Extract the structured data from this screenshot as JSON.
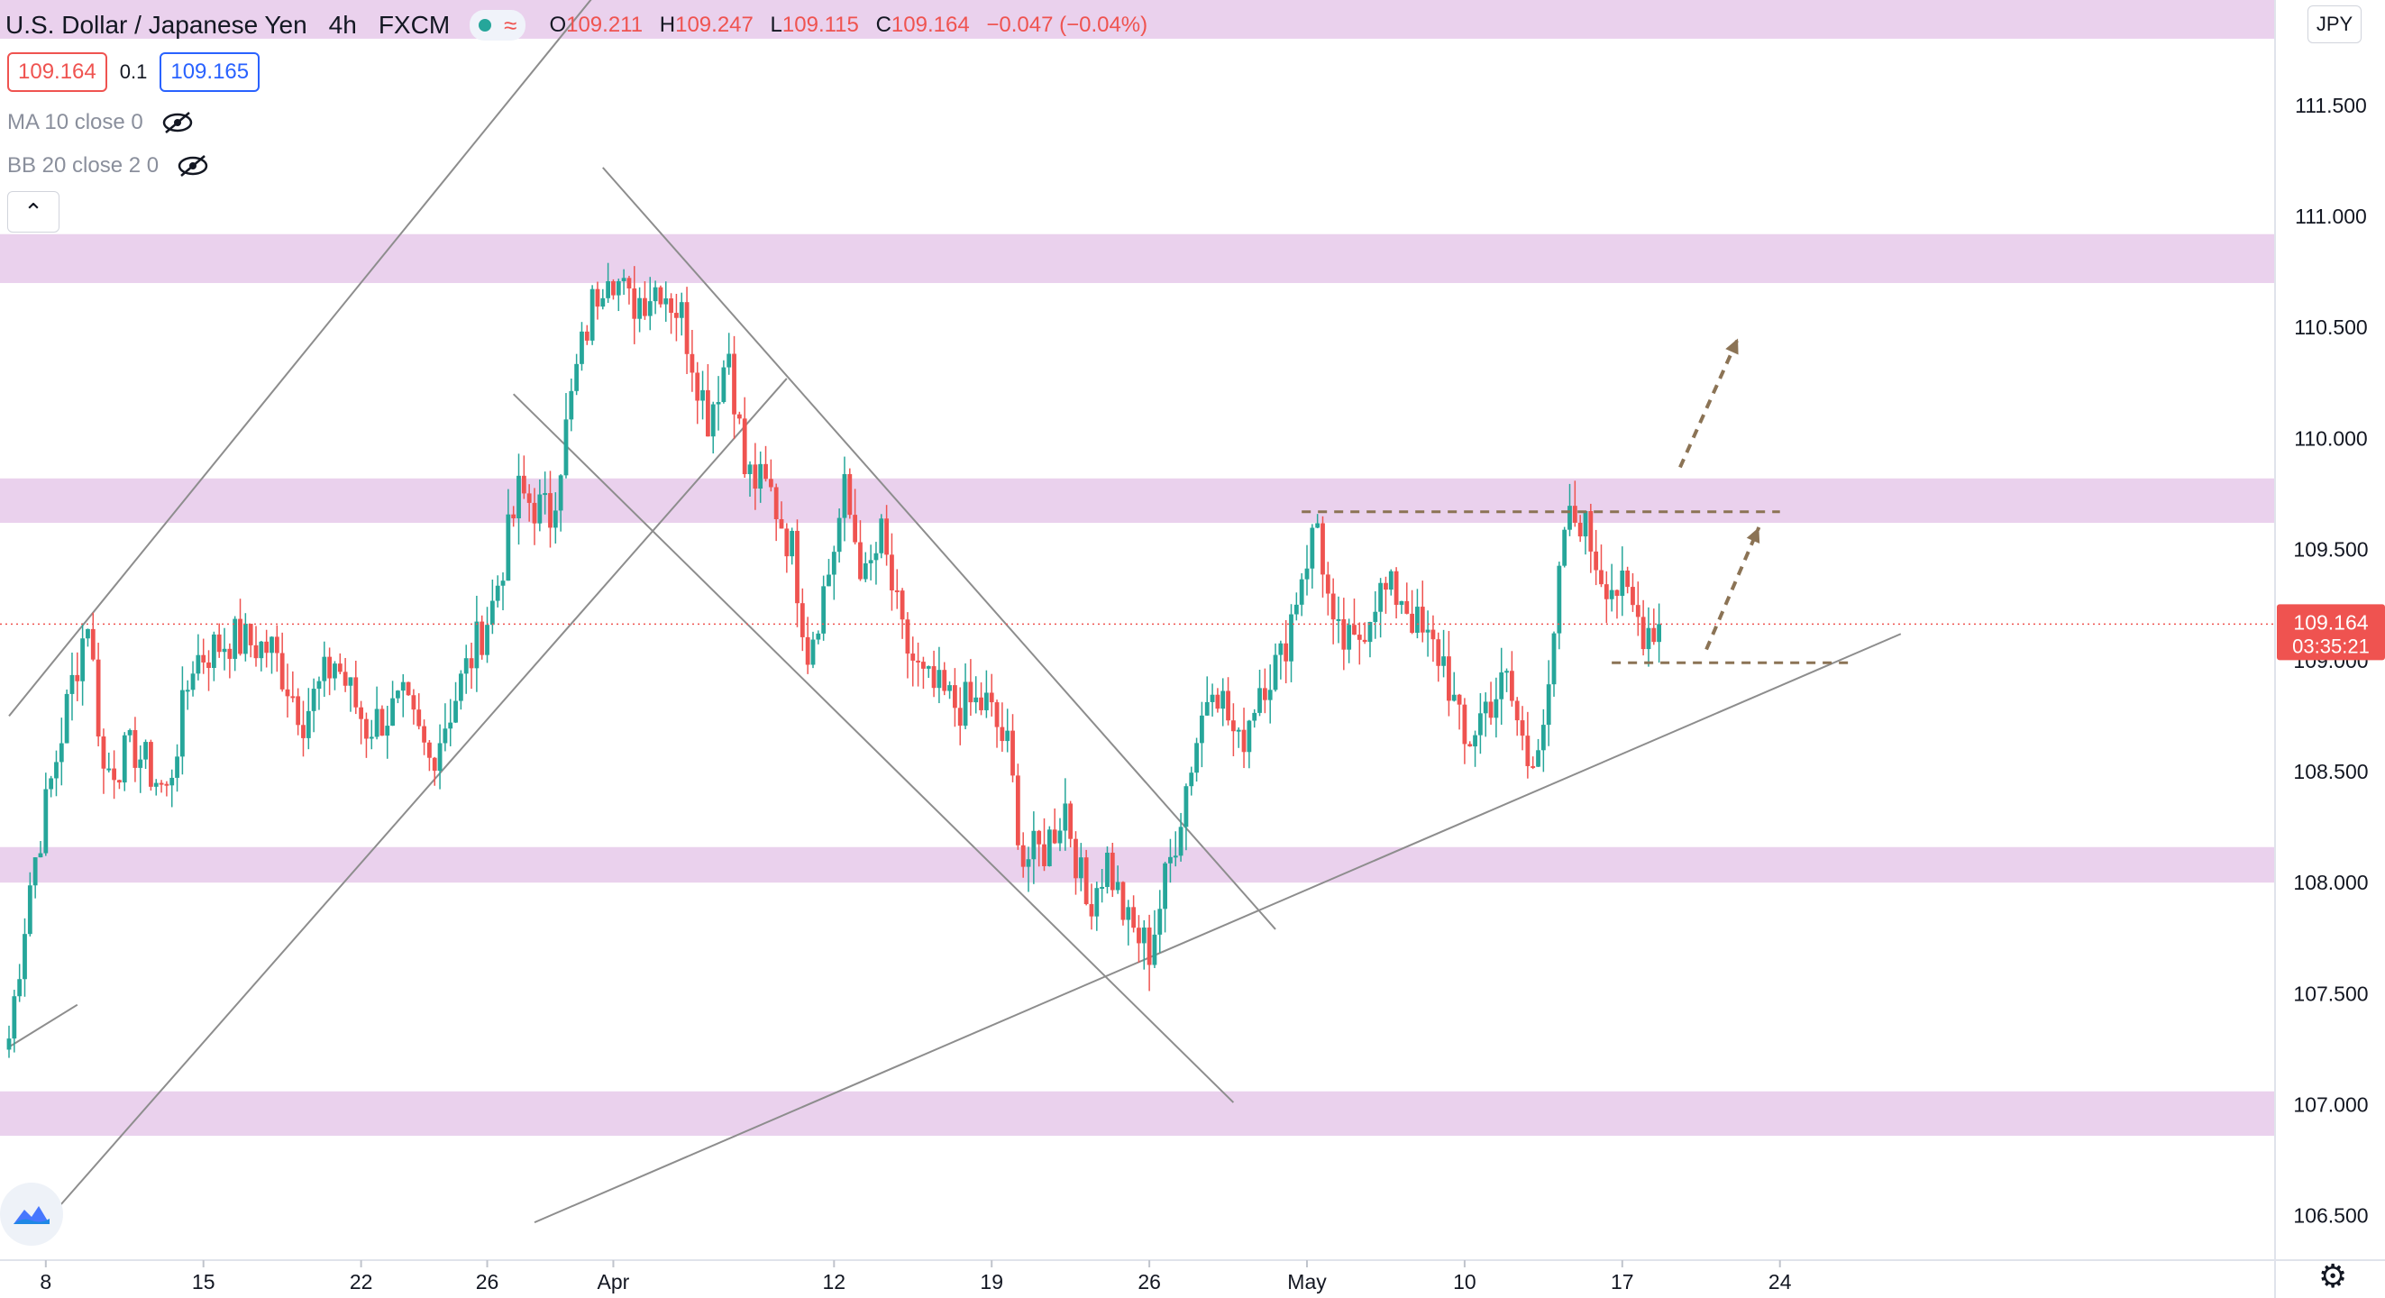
{
  "header": {
    "title": "U.S. Dollar / Japanese Yen",
    "interval": "4h",
    "exchange": "FXCM",
    "ohlc": [
      {
        "k": "O",
        "v": "109.211"
      },
      {
        "k": "H",
        "v": "109.247"
      },
      {
        "k": "L",
        "v": "109.115"
      },
      {
        "k": "C",
        "v": "109.164"
      }
    ],
    "change": "−0.047 (−0.04%)",
    "sell_price": "109.164",
    "spread": "0.1",
    "buy_price": "109.165"
  },
  "indicators": [
    {
      "label": "MA 10 close 0"
    },
    {
      "label": "BB 20 close 2 0"
    }
  ],
  "currency_badge": "JPY",
  "last_price_label": "109.164",
  "countdown_label": "03:35:21",
  "colors": {
    "up": "#26a69a",
    "down": "#ef5350",
    "zone": "#e6c9ea",
    "trend": "#8d8d8d",
    "dashed": "#8b7355"
  },
  "chart_data": {
    "type": "candlestick",
    "y_axis": {
      "min": 106.3,
      "max": 111.95,
      "ticks": [
        "111.500",
        "111.000",
        "110.500",
        "110.000",
        "109.500",
        "109.000",
        "108.500",
        "108.000",
        "107.500",
        "107.000",
        "106.500"
      ],
      "position": "right"
    },
    "x_axis": {
      "ticks": [
        {
          "label": "8",
          "bar": 7
        },
        {
          "label": "15",
          "bar": 37
        },
        {
          "label": "22",
          "bar": 67
        },
        {
          "label": "26",
          "bar": 91
        },
        {
          "label": "Apr",
          "bar": 115
        },
        {
          "label": "12",
          "bar": 157
        },
        {
          "label": "19",
          "bar": 187
        },
        {
          "label": "26",
          "bar": 217
        },
        {
          "label": "May",
          "bar": 247
        },
        {
          "label": "10",
          "bar": 277
        },
        {
          "label": "17",
          "bar": 307
        },
        {
          "label": "24",
          "bar": 337
        }
      ]
    },
    "last_price": 109.164,
    "zones": [
      {
        "from": 111.8,
        "to": 112.0
      },
      {
        "from": 110.7,
        "to": 110.92
      },
      {
        "from": 109.62,
        "to": 109.82
      },
      {
        "from": 108.0,
        "to": 108.16
      },
      {
        "from": 106.86,
        "to": 107.06
      }
    ],
    "trend_lines": [
      {
        "from": [
          0,
          108.75
        ],
        "to": [
          115,
          112.1
        ]
      },
      {
        "from": [
          8,
          106.5
        ],
        "to": [
          148,
          110.27
        ]
      },
      {
        "from": [
          0,
          107.26
        ],
        "to": [
          13,
          107.45
        ]
      },
      {
        "from": [
          96,
          110.2
        ],
        "to": [
          233,
          107.01
        ]
      },
      {
        "from": [
          113,
          111.22
        ],
        "to": [
          241,
          107.79
        ]
      },
      {
        "from": [
          100,
          106.47
        ],
        "to": [
          360,
          109.12
        ]
      }
    ],
    "dashed_lines": [
      {
        "from": [
          246,
          109.67
        ],
        "to": [
          337,
          109.67
        ]
      },
      {
        "from": [
          305,
          108.99
        ],
        "to": [
          350,
          108.99
        ]
      }
    ],
    "arrows": [
      {
        "from": [
          318,
          109.87
        ],
        "to": [
          329,
          110.45
        ]
      },
      {
        "from": [
          323,
          109.05
        ],
        "to": [
          333,
          109.6
        ]
      }
    ],
    "keypoints": [
      [
        0,
        107.3
      ],
      [
        4,
        108.0
      ],
      [
        12,
        108.9
      ],
      [
        15,
        109.2
      ],
      [
        18,
        108.5
      ],
      [
        24,
        108.6
      ],
      [
        30,
        108.4
      ],
      [
        35,
        109.0
      ],
      [
        42,
        109.1
      ],
      [
        50,
        109.05
      ],
      [
        56,
        108.75
      ],
      [
        62,
        109.0
      ],
      [
        68,
        108.7
      ],
      [
        75,
        108.8
      ],
      [
        80,
        108.55
      ],
      [
        86,
        108.9
      ],
      [
        92,
        109.25
      ],
      [
        97,
        109.75
      ],
      [
        103,
        109.65
      ],
      [
        108,
        110.3
      ],
      [
        111,
        110.6
      ],
      [
        114,
        110.8
      ],
      [
        118,
        110.6
      ],
      [
        124,
        110.7
      ],
      [
        128,
        110.55
      ],
      [
        133,
        110.1
      ],
      [
        137,
        110.4
      ],
      [
        140,
        109.85
      ],
      [
        145,
        109.75
      ],
      [
        149,
        109.5
      ],
      [
        152,
        109.05
      ],
      [
        156,
        109.4
      ],
      [
        159,
        109.75
      ],
      [
        163,
        109.35
      ],
      [
        166,
        109.55
      ],
      [
        170,
        109.1
      ],
      [
        174,
        108.9
      ],
      [
        180,
        108.8
      ],
      [
        186,
        108.8
      ],
      [
        190,
        108.6
      ],
      [
        193,
        108.1
      ],
      [
        197,
        108.15
      ],
      [
        201,
        108.35
      ],
      [
        205,
        107.9
      ],
      [
        209,
        108.1
      ],
      [
        213,
        107.8
      ],
      [
        217,
        107.7
      ],
      [
        221,
        108.1
      ],
      [
        225,
        108.55
      ],
      [
        229,
        108.95
      ],
      [
        234,
        108.6
      ],
      [
        238,
        108.9
      ],
      [
        242,
        109.0
      ],
      [
        246,
        109.4
      ],
      [
        249,
        109.62
      ],
      [
        252,
        109.1
      ],
      [
        256,
        109.05
      ],
      [
        260,
        109.3
      ],
      [
        265,
        109.3
      ],
      [
        269,
        109.1
      ],
      [
        273,
        109.0
      ],
      [
        277,
        108.6
      ],
      [
        281,
        108.8
      ],
      [
        285,
        108.9
      ],
      [
        289,
        108.55
      ],
      [
        293,
        108.8
      ],
      [
        296,
        109.6
      ],
      [
        299,
        109.65
      ],
      [
        303,
        109.4
      ],
      [
        307,
        109.3
      ],
      [
        311,
        109.15
      ],
      [
        314,
        109.164
      ]
    ]
  }
}
